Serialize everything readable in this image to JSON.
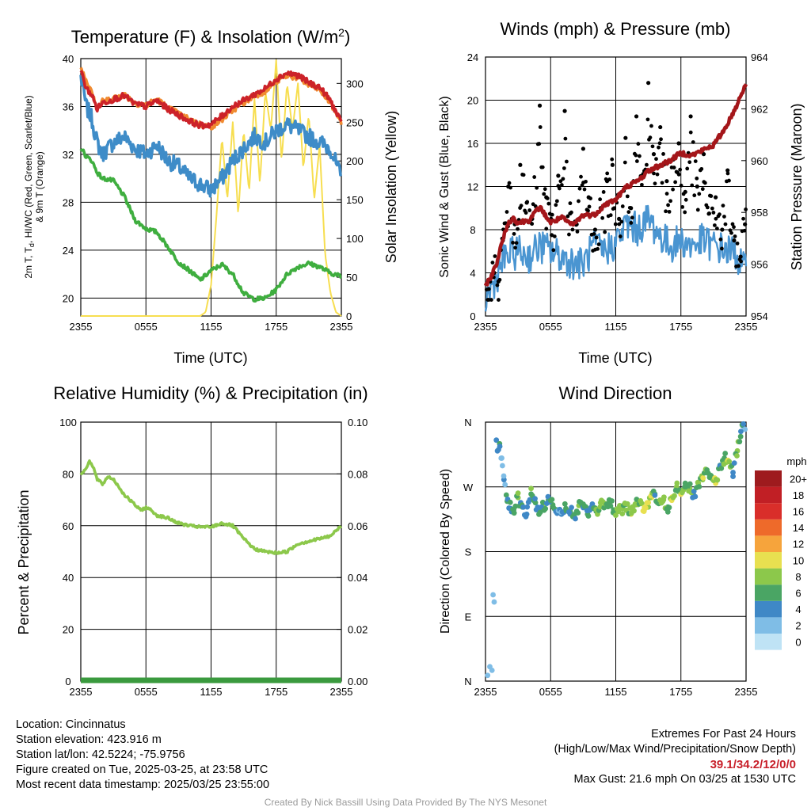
{
  "page": {
    "credit": "Created By Nick Bassill Using Data Provided By The NYS Mesonet"
  },
  "station": {
    "location": "Location: Cincinnatus",
    "elevation": "Station elevation: 423.916 m",
    "latlon": "Station lat/lon: 42.5224; -75.9756",
    "created": "Figure created on Tue, 2025-03-25, at 23:58 UTC",
    "recent": "Most recent data timestamp: 2025/03/25 23:55:00"
  },
  "extremes": {
    "title": "Extremes For Past 24 Hours",
    "subtitle": "(High/Low/Max Wind/Precipitation/Snow Depth)",
    "values": "39.1/34.2/12/0/0",
    "max_gust": "Max Gust: 21.6 mph On 03/25 at 1530 UTC"
  },
  "colors": {
    "temp_red": "#cc2229",
    "temp_orange": "#f08a30",
    "temp_blue": "#3e8cc8",
    "dewpoint_green": "#3fae3f",
    "insolation_yellow": "#f7de50",
    "wind_blue": "#4a95d1",
    "gust_black": "#000000",
    "pressure_maroon": "#a4161a",
    "rh_green": "#8cc84b",
    "precip_green": "#3a9a3e",
    "speed_scale": [
      "#bfe3f5",
      "#7fbde6",
      "#3f88c6",
      "#4aa564",
      "#8cc84b",
      "#e8e050",
      "#f6a43c",
      "#ee6a2a",
      "#d92e2a",
      "#c11f25",
      "#9e1b1e"
    ]
  },
  "chart_data": [
    {
      "type": "line",
      "title": "Temperature (F) & Insolation (W/m²)",
      "title_main": "Temperature (F) & Insolation (W/m",
      "title_sup": "2",
      "title_end": ")",
      "xlabel": "Time (UTC)",
      "ylabel": "2m T, Td, HI/WC (Red, Green, Scarlet/Blue) & 9m T (Orange)",
      "ylabel_parts": [
        "2m T, T",
        "d",
        ", HI/WC (Red, Green, Scarlet/Blue)",
        "& 9m T (Orange)"
      ],
      "y2label": "Solar Insolation (Yellow)",
      "x_ticks": [
        "2355",
        "0555",
        "1155",
        "1755",
        "2355"
      ],
      "x_hours": [
        0,
        24
      ],
      "ylim": [
        18.5,
        40
      ],
      "y_ticks": [
        20,
        24,
        28,
        32,
        36,
        40
      ],
      "y2lim": [
        0,
        332
      ],
      "y2_ticks": [
        0,
        50,
        100,
        150,
        200,
        250,
        300
      ],
      "series": [
        {
          "name": "2m T (Red)",
          "x": [
            0,
            0.5,
            1,
            1.5,
            2,
            3,
            4,
            5,
            6,
            7,
            8,
            9,
            10,
            11,
            12,
            13,
            14,
            15,
            16,
            17,
            18,
            19,
            20,
            21,
            22,
            23,
            24
          ],
          "values": [
            39.0,
            37.5,
            37.0,
            35.8,
            36.3,
            36.6,
            36.9,
            36.2,
            36.0,
            36.5,
            35.8,
            35.3,
            34.8,
            34.4,
            34.5,
            35.2,
            36.0,
            36.5,
            37.0,
            37.5,
            38.3,
            38.8,
            38.6,
            38.0,
            37.6,
            36.5,
            34.6
          ]
        },
        {
          "name": "9m T (Orange)",
          "x": [
            0,
            0.5,
            1,
            1.5,
            2,
            3,
            4,
            5,
            6,
            7,
            8,
            9,
            10,
            11,
            12,
            13,
            14,
            15,
            16,
            17,
            18,
            19,
            20,
            21,
            22,
            23,
            24
          ],
          "values": [
            39.2,
            38.2,
            37.4,
            35.9,
            36.4,
            36.7,
            37.0,
            36.3,
            36.1,
            36.6,
            35.9,
            35.4,
            34.9,
            34.5,
            34.3,
            34.9,
            35.7,
            36.3,
            36.9,
            37.3,
            38.1,
            38.6,
            38.4,
            37.8,
            37.4,
            36.3,
            34.7
          ]
        },
        {
          "name": "HI/WC (Blue)",
          "x": [
            0,
            0.5,
            1,
            1.5,
            2,
            3,
            4,
            5,
            6,
            7,
            8,
            9,
            10,
            11,
            12,
            13,
            14,
            15,
            16,
            17,
            18,
            19,
            20,
            21,
            22,
            23,
            24
          ],
          "values": [
            38.5,
            36.0,
            35.0,
            33.0,
            32.0,
            33.0,
            33.5,
            32.5,
            32.0,
            32.8,
            31.5,
            31.0,
            30.0,
            29.5,
            29.0,
            30.0,
            31.5,
            32.5,
            33.5,
            33.0,
            34.0,
            34.5,
            34.0,
            33.5,
            33.0,
            32.5,
            30.0
          ]
        },
        {
          "name": "2m Td (Green)",
          "x": [
            0,
            0.5,
            1,
            1.5,
            2,
            3,
            4,
            5,
            6,
            7,
            8,
            9,
            10,
            11,
            12,
            13,
            14,
            15,
            16,
            17,
            18,
            19,
            20,
            21,
            22,
            23,
            24
          ],
          "values": [
            32.6,
            31.8,
            31.5,
            30.5,
            30.0,
            29.8,
            28.5,
            26.5,
            25.8,
            25.5,
            24.3,
            23.0,
            22.3,
            21.5,
            22.3,
            22.8,
            22.0,
            20.4,
            19.9,
            20.0,
            20.7,
            22.0,
            22.6,
            22.9,
            22.6,
            22.1,
            21.8
          ]
        },
        {
          "name": "Solar Insolation (Yellow)",
          "axis": "right",
          "x": [
            0,
            1,
            2,
            4,
            6,
            8,
            10,
            11,
            11.5,
            12,
            12.5,
            13,
            13.5,
            14,
            14.5,
            15,
            15.5,
            16,
            16.5,
            17,
            17.5,
            18,
            18.5,
            19,
            19.5,
            20,
            20.5,
            21,
            21.5,
            22,
            22.5,
            23,
            23.5,
            24
          ],
          "values": [
            0,
            0,
            0,
            0,
            0,
            0,
            0,
            0,
            5,
            40,
            130,
            230,
            150,
            250,
            130,
            240,
            160,
            280,
            170,
            290,
            240,
            330,
            200,
            300,
            240,
            300,
            190,
            260,
            150,
            220,
            80,
            30,
            5,
            0
          ]
        }
      ]
    },
    {
      "type": "scatter",
      "title": "Winds (mph) & Pressure (mb)",
      "xlabel": "Time (UTC)",
      "ylabel": "Sonic Wind & Gust (Blue, Black)",
      "y2label": "Station Pressure (Maroon)",
      "x_ticks": [
        "2355",
        "0555",
        "1155",
        "1755",
        "2355"
      ],
      "x_hours": [
        0,
        24
      ],
      "ylim": [
        0,
        24
      ],
      "y_ticks": [
        0,
        4,
        8,
        12,
        16,
        20,
        24
      ],
      "y2lim": [
        954,
        964
      ],
      "y2_ticks": [
        954,
        956,
        958,
        960,
        962,
        964
      ],
      "series": [
        {
          "name": "Sonic Wind (Blue)",
          "x": [
            0,
            0.5,
            1,
            1.5,
            2,
            3,
            4,
            5,
            6,
            7,
            8,
            9,
            10,
            11,
            12,
            13,
            14,
            15,
            16,
            17,
            18,
            19,
            20,
            21,
            22,
            23,
            24
          ],
          "values": [
            1.5,
            2.5,
            3.5,
            5.0,
            5.5,
            6.0,
            5.5,
            6.5,
            6.0,
            5.5,
            5.0,
            4.8,
            6.5,
            6.0,
            6.8,
            8.5,
            8.0,
            9.0,
            7.5,
            6.5,
            7.0,
            6.5,
            7.0,
            6.5,
            6.2,
            5.8,
            4.0
          ]
        },
        {
          "name": "Gust (Black)",
          "x": [
            0.3,
            0.8,
            1.2,
            1.6,
            2.1,
            2.7,
            3.2,
            3.8,
            4.3,
            5.0,
            5.6,
            6.1,
            6.7,
            7.3,
            7.8,
            8.4,
            9.0,
            9.5,
            10.1,
            10.6,
            11.2,
            11.7,
            12.3,
            12.9,
            13.4,
            13.9,
            14.5,
            15.0,
            15.5,
            16.1,
            16.7,
            17.3,
            17.8,
            18.4,
            18.9,
            19.5,
            20.1,
            20.6,
            21.2,
            21.8,
            22.3,
            22.9,
            23.5,
            23.9
          ],
          "values": [
            2.5,
            4.0,
            3.2,
            7.0,
            12.0,
            8.5,
            14.0,
            10.5,
            9.0,
            19.5,
            11.0,
            7.5,
            13.0,
            19.0,
            9.5,
            8.5,
            15.5,
            11.0,
            8.0,
            10.0,
            12.5,
            14.0,
            9.0,
            16.5,
            10.0,
            18.5,
            13.0,
            21.6,
            15.0,
            17.5,
            12.5,
            14.5,
            16.0,
            11.5,
            18.5,
            12.0,
            15.0,
            9.5,
            11.0,
            8.0,
            13.5,
            7.0,
            5.5,
            8.5
          ]
        },
        {
          "name": "Station Pressure (Maroon)",
          "axis": "right",
          "x": [
            0,
            0.5,
            1,
            1.5,
            2,
            2.5,
            3,
            4,
            5,
            6,
            7,
            8,
            9,
            10,
            11,
            12,
            13,
            14,
            15,
            16,
            17,
            18,
            19,
            20,
            21,
            22,
            23,
            24
          ],
          "values": [
            955.2,
            955.5,
            956.0,
            956.8,
            957.5,
            957.8,
            957.6,
            957.7,
            958.2,
            957.6,
            957.8,
            957.5,
            957.9,
            957.9,
            958.3,
            958.5,
            959.0,
            959.2,
            959.6,
            959.8,
            960.0,
            960.3,
            960.2,
            960.4,
            960.6,
            961.2,
            962.0,
            963.0
          ]
        }
      ]
    },
    {
      "type": "line",
      "title": "Relative Humidity (%) & Precipitation (in)",
      "xlabel": "",
      "ylabel": "Percent & Precipitation",
      "x_ticks": [
        "2355",
        "0555",
        "1155",
        "1755",
        "2355"
      ],
      "x_hours": [
        0,
        24
      ],
      "ylim": [
        0,
        100
      ],
      "y_ticks": [
        0,
        20,
        40,
        60,
        80,
        100
      ],
      "y2lim": [
        0,
        0.1
      ],
      "y2_ticks": [
        "0.00",
        "0.02",
        "0.04",
        "0.06",
        "0.08",
        "0.10"
      ],
      "series": [
        {
          "name": "Relative Humidity",
          "x": [
            0,
            0.3,
            0.8,
            1.2,
            1.5,
            2.0,
            2.5,
            3.0,
            3.5,
            4.0,
            4.5,
            5.0,
            5.5,
            6.0,
            6.5,
            7.0,
            8.0,
            9.0,
            10.0,
            11.0,
            12.0,
            13.0,
            14.0,
            15.0,
            16.0,
            17.0,
            18.0,
            19.0,
            20.0,
            21.0,
            22.0,
            23.0,
            24.0
          ],
          "values": [
            80,
            81,
            85,
            82,
            78,
            76,
            79,
            78,
            75,
            72,
            70,
            68,
            66,
            67,
            66,
            64,
            63,
            61,
            60,
            59.5,
            59.5,
            61,
            60,
            55,
            51,
            50,
            49.5,
            50,
            53,
            54,
            55,
            56,
            60
          ]
        },
        {
          "name": "Precipitation",
          "axis": "right",
          "x": [
            0,
            24
          ],
          "values": [
            0,
            0
          ]
        }
      ]
    },
    {
      "type": "scatter",
      "title": "Wind Direction",
      "xlabel": "",
      "ylabel": "Direction (Colored By Speed)",
      "x_ticks": [
        "2355",
        "0555",
        "1155",
        "1755",
        "2355"
      ],
      "x_hours": [
        0,
        24
      ],
      "y_ticks": [
        "N",
        "E",
        "S",
        "W",
        "N"
      ],
      "ylim": [
        0,
        360
      ],
      "colorbar_title": "mph",
      "colorbar_labels": [
        "0",
        "2",
        "4",
        "6",
        "8",
        "10",
        "12",
        "14",
        "16",
        "18",
        "20+"
      ],
      "series": [
        {
          "name": "Direction (deg) / Speed (mph)",
          "x": [
            0.2,
            0.4,
            0.6,
            0.7,
            0.8,
            1.0,
            1.1,
            1.3,
            1.5,
            1.7,
            2.0,
            2.3,
            2.6,
            3.0,
            3.4,
            3.8,
            4.2,
            4.6,
            5.0,
            5.4,
            5.8,
            6.2,
            6.6,
            7.0,
            7.4,
            7.8,
            8.2,
            8.6,
            9.0,
            9.4,
            9.8,
            10.2,
            10.6,
            11.0,
            11.4,
            11.8,
            12.2,
            12.6,
            13.0,
            13.4,
            13.8,
            14.2,
            14.6,
            15.0,
            15.3,
            15.6,
            16.0,
            16.4,
            16.8,
            17.2,
            17.6,
            18.0,
            18.4,
            18.8,
            19.2,
            19.6,
            20.0,
            20.4,
            20.8,
            21.2,
            21.6,
            22.0,
            22.4,
            22.8,
            23.2,
            23.5,
            23.7,
            23.9
          ],
          "direction": [
            8,
            20,
            15,
            120,
            110,
            335,
            320,
            330,
            310,
            280,
            250,
            240,
            238,
            255,
            242,
            232,
            260,
            248,
            236,
            244,
            252,
            245,
            238,
            232,
            240,
            236,
            228,
            244,
            246,
            232,
            240,
            236,
            248,
            244,
            252,
            238,
            236,
            240,
            246,
            232,
            245,
            250,
            236,
            242,
            255,
            260,
            248,
            252,
            242,
            256,
            270,
            262,
            275,
            268,
            258,
            275,
            280,
            290,
            285,
            275,
            300,
            310,
            305,
            290,
            320,
            340,
            355,
            350
          ],
          "speed": [
            2,
            2,
            1,
            1,
            1,
            4,
            3,
            5,
            2,
            3,
            6,
            4,
            5,
            7,
            5,
            4,
            6,
            5,
            4,
            7,
            5,
            6,
            4,
            3,
            6,
            5,
            4,
            7,
            6,
            5,
            4,
            6,
            7,
            8,
            6,
            5,
            7,
            8,
            6,
            9,
            8,
            7,
            10,
            8,
            9,
            6,
            7,
            8,
            6,
            9,
            7,
            8,
            6,
            7,
            5,
            7,
            8,
            6,
            7,
            9,
            5,
            6,
            10,
            4,
            7,
            5,
            4,
            2
          ]
        }
      ]
    }
  ]
}
